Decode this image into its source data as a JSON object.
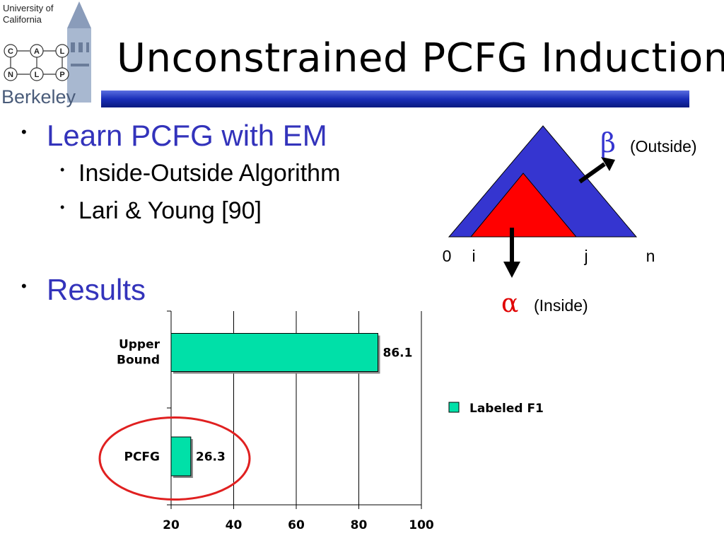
{
  "logo": {
    "university_line1": "University of",
    "university_line2": "California",
    "nodes": [
      "C",
      "A",
      "L",
      "N",
      "L",
      "P"
    ],
    "berkeley": "Berkeley"
  },
  "slide": {
    "title": "Unconstrained PCFG Induction",
    "title_bar_color": "#1a2fb8",
    "bullets": [
      {
        "text": "Learn PCFG with EM",
        "subs": [
          "Inside-Outside Algorithm",
          "Lari & Young [90]"
        ]
      },
      {
        "text": "Results"
      }
    ]
  },
  "diagram": {
    "outer_color": "#3535d0",
    "inner_color": "#ff0000",
    "beta_symbol": "β",
    "beta_label": "(Outside)",
    "alpha_symbol": "α",
    "alpha_label": "(Inside)",
    "positions": [
      "0",
      "i",
      "j",
      "n"
    ]
  },
  "chart_data": {
    "type": "bar",
    "orientation": "horizontal",
    "categories": [
      "Upper Bound",
      "PCFG"
    ],
    "series": [
      {
        "name": "Labeled F1",
        "values": [
          86.1,
          26.3
        ],
        "color": "#00e0a8"
      }
    ],
    "data_labels": [
      "86.1",
      "26.3"
    ],
    "xlim": [
      20,
      100
    ],
    "xticks": [
      20,
      40,
      60,
      80,
      100
    ],
    "grid": true,
    "legend": "right",
    "highlight": "PCFG",
    "highlight_color": "#e02020"
  }
}
